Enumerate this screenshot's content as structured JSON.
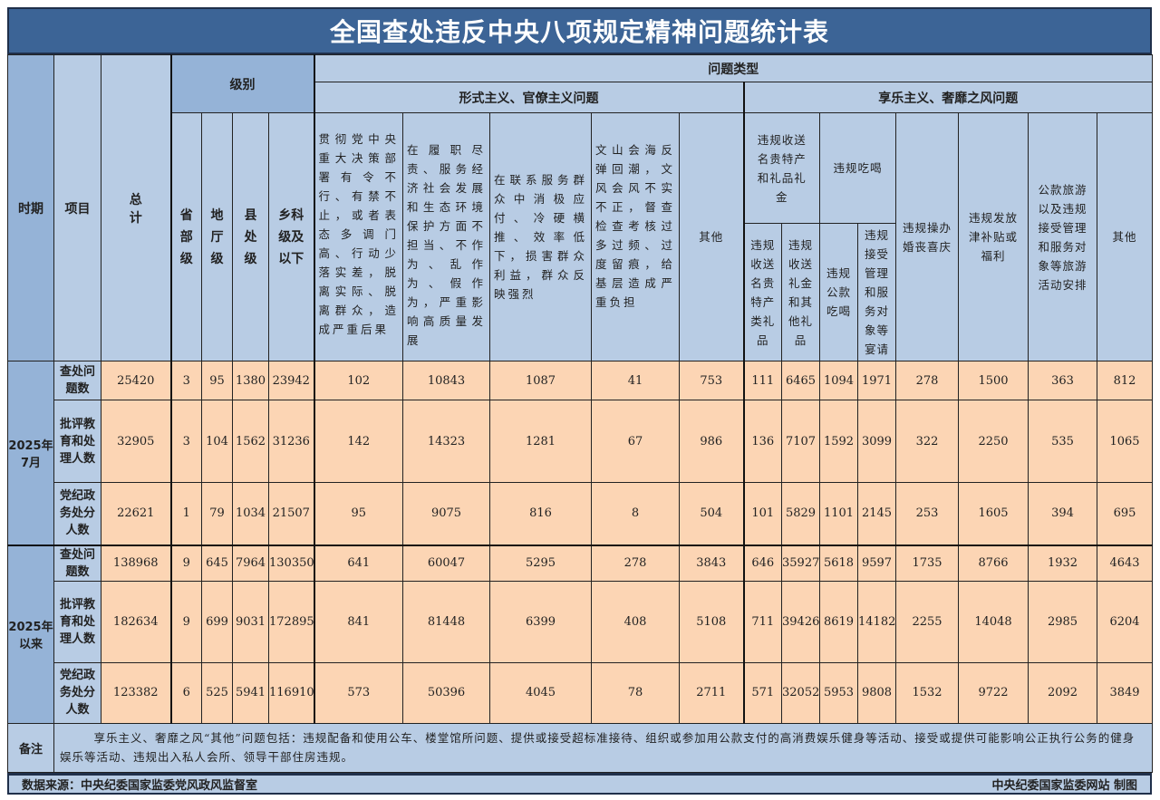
{
  "title": "全国查处违反中央八项规定精神问题统计表",
  "header": {
    "period": "时期",
    "item": "项目",
    "total": "总计",
    "level": "级别",
    "levels": [
      "省部级",
      "地厅级",
      "县处级",
      "乡科级及以下"
    ],
    "problem_type": "问题类型",
    "group_formalism": "形式主义、官僚主义问题",
    "group_hedonism": "享乐主义、奢靡之风问题",
    "formalism_cols": [
      "贯彻党中央重大决策部署有令不行、有禁不止，或者表态多调门高、行动少落实差，脱离实际、脱离群众，造成严重后果",
      "在履职尽责、服务经济社会发展和生态环境保护方面不担当、不作为、乱作为、假作为，严重影响高质量发展",
      "在联系服务群众中消极应付、冷硬横推、效率低下，损害群众利益，群众反映强烈",
      "文山会海反弹回潮，文风会风不实不正，督查检查考核过多过频、过度留痕，给基层造成严重负担",
      "其他"
    ],
    "gift_group": "违规收送名贵特产和礼品礼金",
    "gift_cols": [
      "违规收送名贵特产类礼品",
      "违规收送礼金和其他礼品"
    ],
    "dining_group": "违规吃喝",
    "dining_cols": [
      "违规公款吃喝",
      "违规接受管理和服务对象等宴请"
    ],
    "hedonism_cols": [
      "违规操办婚丧喜庆",
      "违规发放津补贴或福利",
      "公款旅游以及违规接受管理和服务对象等旅游活动安排",
      "其他"
    ]
  },
  "periods": [
    {
      "label": "2025年7月",
      "rows": [
        {
          "item": "查处问题数",
          "values": [
            "25420",
            "3",
            "95",
            "1380",
            "23942",
            "102",
            "10843",
            "1087",
            "41",
            "753",
            "111",
            "6465",
            "1094",
            "1971",
            "278",
            "1500",
            "363",
            "812"
          ]
        },
        {
          "item": "批评教育和处理人数",
          "values": [
            "32905",
            "3",
            "104",
            "1562",
            "31236",
            "142",
            "14323",
            "1281",
            "67",
            "986",
            "136",
            "7107",
            "1592",
            "3099",
            "322",
            "2250",
            "535",
            "1065"
          ]
        },
        {
          "item": "党纪政务处分人数",
          "values": [
            "22621",
            "1",
            "79",
            "1034",
            "21507",
            "95",
            "9075",
            "816",
            "8",
            "504",
            "101",
            "5829",
            "1101",
            "2145",
            "253",
            "1605",
            "394",
            "695"
          ]
        }
      ]
    },
    {
      "label": "2025年以来",
      "rows": [
        {
          "item": "查处问题数",
          "values": [
            "138968",
            "9",
            "645",
            "7964",
            "130350",
            "641",
            "60047",
            "5295",
            "278",
            "3843",
            "646",
            "35927",
            "5618",
            "9597",
            "1735",
            "8766",
            "1932",
            "4643"
          ]
        },
        {
          "item": "批评教育和处理人数",
          "values": [
            "182634",
            "9",
            "699",
            "9031",
            "172895",
            "841",
            "81448",
            "6399",
            "408",
            "5108",
            "711",
            "39426",
            "8619",
            "14182",
            "2255",
            "14048",
            "2985",
            "6204"
          ]
        },
        {
          "item": "党纪政务处分人数",
          "values": [
            "123382",
            "6",
            "525",
            "5941",
            "116910",
            "573",
            "50396",
            "4045",
            "78",
            "2711",
            "571",
            "32052",
            "5953",
            "9808",
            "1532",
            "9722",
            "2092",
            "3849"
          ]
        }
      ]
    }
  ],
  "notes": {
    "label": "备注",
    "text": "享乐主义、奢靡之风“其他”问题包括：违规配备和使用公车、楼堂馆所问题、提供或接受超标准接待、组织或参加用公款支付的高消费娱乐健身等活动、接受或提供可能影响公正执行公务的健身娱乐等活动、违规出入私人会所、领导干部住房违规。"
  },
  "footer": {
    "source": "数据来源：中央纪委国家监委党风政风监督室",
    "credit": "中央纪委国家监委网站 制图"
  },
  "colors": {
    "title_bg": "#3c6496",
    "header_bg": "#b8cce4",
    "period_bg": "#95b3d7",
    "cell_bg": "#fcd5b4"
  }
}
